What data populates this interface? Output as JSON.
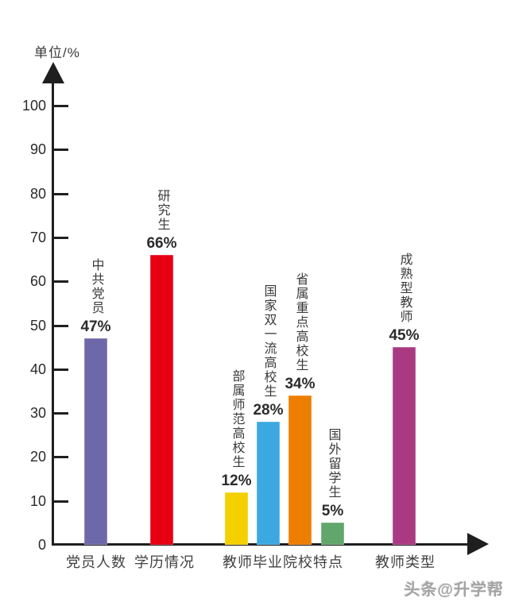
{
  "chart_data": {
    "type": "bar",
    "title": "",
    "unit_label": "单位/%",
    "ylabel": "单位/%",
    "xlabel": "",
    "ylim": [
      0,
      100
    ],
    "yticks": [
      0,
      10,
      20,
      30,
      40,
      50,
      60,
      70,
      80,
      90,
      100
    ],
    "grid": false,
    "legend_position": "none",
    "bars": [
      {
        "label": "中共党员",
        "value": 47,
        "value_label": "47%",
        "color": "#6F68A8",
        "group": "党员人数"
      },
      {
        "label": "研究生",
        "value": 66,
        "value_label": "66%",
        "color": "#E60012",
        "group": "学历情况"
      },
      {
        "label": "部属师范高校生",
        "value": 12,
        "value_label": "12%",
        "color": "#F4D000",
        "group": "教师毕业院校特点"
      },
      {
        "label": "国家双一流高校生",
        "value": 28,
        "value_label": "28%",
        "color": "#3BA9E0",
        "group": "教师毕业院校特点"
      },
      {
        "label": "省属重点高校生",
        "value": 34,
        "value_label": "34%",
        "color": "#EE7E00",
        "group": "教师毕业院校特点"
      },
      {
        "label": "国外留学生",
        "value": 5,
        "value_label": "5%",
        "color": "#61A76C",
        "group": "教师毕业院校特点"
      },
      {
        "label": "成熟型教师",
        "value": 45,
        "value_label": "45%",
        "color": "#A93A82",
        "group": "教师类型"
      }
    ],
    "x_categories": [
      "党员人数",
      "学历情况",
      "教师毕业院校特点",
      "教师类型"
    ]
  },
  "watermark": "头条@升学帮"
}
